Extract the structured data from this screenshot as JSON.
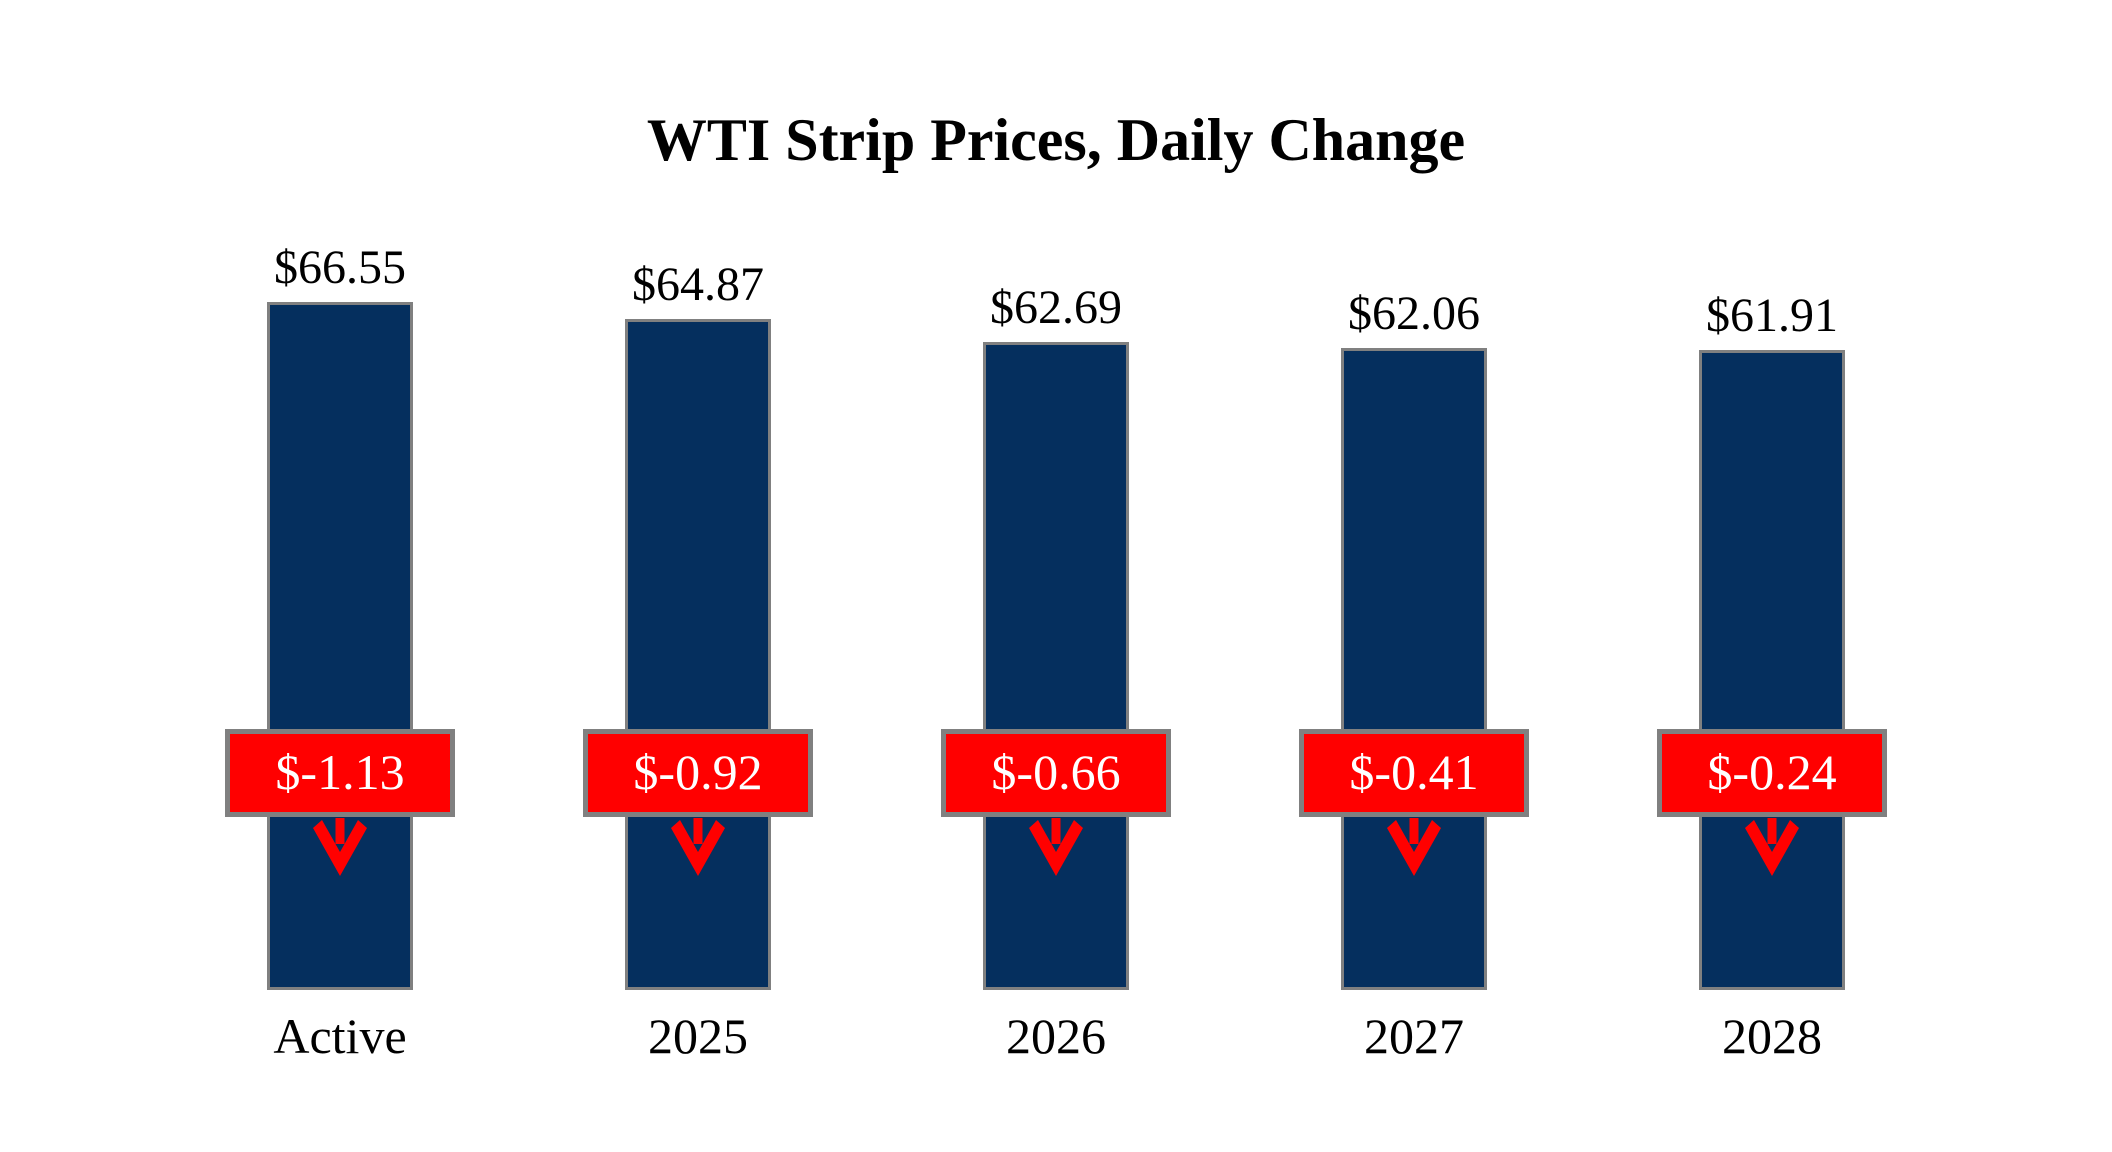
{
  "chart_data": {
    "type": "bar",
    "title": "WTI Strip Prices, Daily Change",
    "categories": [
      "Active",
      "2025",
      "2026",
      "2027",
      "2028"
    ],
    "values": [
      66.55,
      64.87,
      62.69,
      62.06,
      61.91
    ],
    "value_labels": [
      "$66.55",
      "$64.87",
      "$62.69",
      "$62.06",
      "$61.91"
    ],
    "daily_changes": [
      -1.13,
      -0.92,
      -0.66,
      -0.41,
      -0.24
    ],
    "change_labels": [
      "$-1.13",
      "$-0.92",
      "$-0.66",
      "$-0.41",
      "$-0.24"
    ],
    "xlabel": "",
    "ylabel": "",
    "ylim": [
      0,
      70
    ],
    "grid": false,
    "legend": false,
    "arrow_direction": "down",
    "colors": {
      "bar": "#052F5E",
      "bar_border": "#808080",
      "change_box": "#FF0000",
      "change_box_border": "#808080",
      "change_text": "#FFFFFF",
      "arrow": "#FF0000",
      "text": "#000000",
      "background": "#FFFFFF"
    }
  }
}
